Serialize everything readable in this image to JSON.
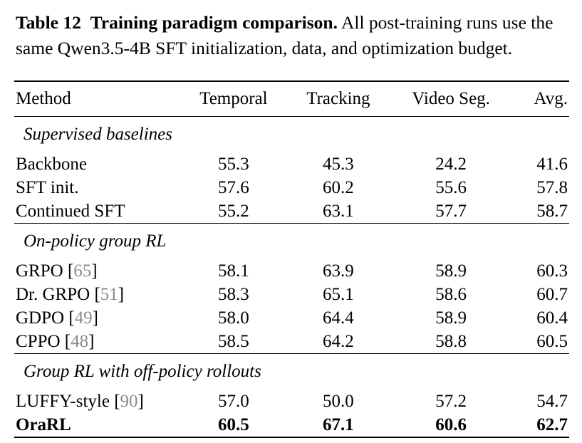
{
  "caption": {
    "label": "Table 12",
    "title": "Training paradigm comparison.",
    "text": "All post-training runs use the same Qwen3.5-4B SFT initialization, data, and optimization budget."
  },
  "table": {
    "headers": [
      "Method",
      "Temporal",
      "Tracking",
      "Video Seg.",
      "Avg."
    ],
    "sections": [
      {
        "title": "Supervised baselines",
        "rows": [
          {
            "method": "Backbone",
            "ref": "",
            "values": [
              "55.3",
              "45.3",
              "24.2",
              "41.6"
            ],
            "bold": false
          },
          {
            "method": "SFT init.",
            "ref": "",
            "values": [
              "57.6",
              "60.2",
              "55.6",
              "57.8"
            ],
            "bold": false
          },
          {
            "method": "Continued SFT",
            "ref": "",
            "values": [
              "55.2",
              "63.1",
              "57.7",
              "58.7"
            ],
            "bold": false
          }
        ]
      },
      {
        "title": "On-policy group RL",
        "rows": [
          {
            "method": "GRPO",
            "ref": "65",
            "values": [
              "58.1",
              "63.9",
              "58.9",
              "60.3"
            ],
            "bold": false
          },
          {
            "method": "Dr. GRPO",
            "ref": "51",
            "values": [
              "58.3",
              "65.1",
              "58.6",
              "60.7"
            ],
            "bold": false
          },
          {
            "method": "GDPO",
            "ref": "49",
            "values": [
              "58.0",
              "64.4",
              "58.9",
              "60.4"
            ],
            "bold": false
          },
          {
            "method": "CPPO",
            "ref": "48",
            "values": [
              "58.5",
              "64.2",
              "58.8",
              "60.5"
            ],
            "bold": false
          }
        ]
      },
      {
        "title": "Group RL with off-policy rollouts",
        "rows": [
          {
            "method": "LUFFY-style",
            "ref": "90",
            "values": [
              "57.0",
              "50.0",
              "57.2",
              "54.7"
            ],
            "bold": false
          },
          {
            "method": "OraRL",
            "ref": "",
            "values": [
              "60.5",
              "67.1",
              "60.6",
              "62.7"
            ],
            "bold": true
          }
        ]
      }
    ]
  }
}
